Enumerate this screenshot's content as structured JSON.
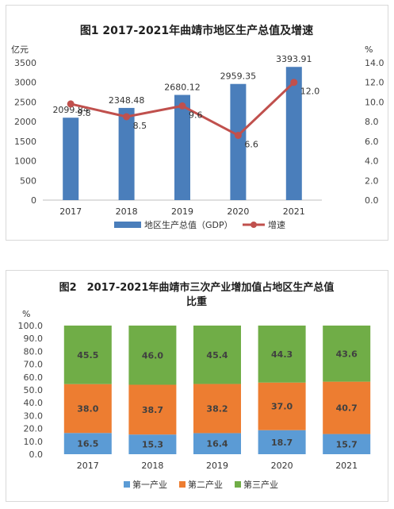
{
  "chart_data": [
    {
      "type": "bar+line",
      "title": "图1 2017-2021年曲靖市地区生产总值及增速",
      "categories": [
        "2017",
        "2018",
        "2019",
        "2020",
        "2021"
      ],
      "y_left": {
        "unit": "亿元",
        "ylim": [
          0,
          3500
        ],
        "ticks": [
          "0",
          "500",
          "1000",
          "1500",
          "2000",
          "2500",
          "3000",
          "3500"
        ]
      },
      "y_right": {
        "unit": "%",
        "ylim": [
          0,
          14
        ],
        "ticks": [
          "0.0",
          "2.0",
          "4.0",
          "6.0",
          "8.0",
          "10.0",
          "12.0",
          "14.0"
        ]
      },
      "series": [
        {
          "name": "地区生产总值（GDP）",
          "type": "bar",
          "axis": "left",
          "values": [
            2099.84,
            2348.48,
            2680.12,
            2959.35,
            3393.91
          ],
          "labels": [
            "2099.84",
            "2348.48",
            "2680.12",
            "2959.35",
            "3393.91"
          ]
        },
        {
          "name": "增速",
          "type": "line",
          "axis": "right",
          "values": [
            9.8,
            8.5,
            9.6,
            6.6,
            12.0
          ],
          "labels": [
            "9.8",
            "8.5",
            "9.6",
            "6.6",
            "12.0"
          ]
        }
      ],
      "legend": "bottom",
      "colors": {
        "bar": "#4a7ebb",
        "line": "#c0504d"
      }
    },
    {
      "type": "stacked-bar",
      "title_lines": [
        "图2　2017-2021年曲靖市三次产业增加值占地区生产总值",
        "比重"
      ],
      "categories": [
        "2017",
        "2018",
        "2019",
        "2020",
        "2021"
      ],
      "y": {
        "unit": "%",
        "ylim": [
          0,
          100
        ],
        "ticks": [
          "0.0",
          "10.0",
          "20.0",
          "30.0",
          "40.0",
          "50.0",
          "60.0",
          "70.0",
          "80.0",
          "90.0",
          "100.0"
        ]
      },
      "series": [
        {
          "name": "第一产业",
          "values": [
            16.5,
            15.3,
            16.4,
            18.7,
            15.7
          ],
          "labels": [
            "16.5",
            "15.3",
            "16.4",
            "18.7",
            "15.7"
          ],
          "color": "#5b9bd5"
        },
        {
          "name": "第二产业",
          "values": [
            38.0,
            38.7,
            38.2,
            37.0,
            40.7
          ],
          "labels": [
            "38.0",
            "38.7",
            "38.2",
            "37.0",
            "40.7"
          ],
          "color": "#ed7d31"
        },
        {
          "name": "第三产业",
          "values": [
            45.5,
            46.0,
            45.4,
            44.3,
            43.6
          ],
          "labels": [
            "45.5",
            "46.0",
            "45.4",
            "44.3",
            "43.6"
          ],
          "color": "#70ad47"
        }
      ],
      "legend": "bottom"
    }
  ]
}
